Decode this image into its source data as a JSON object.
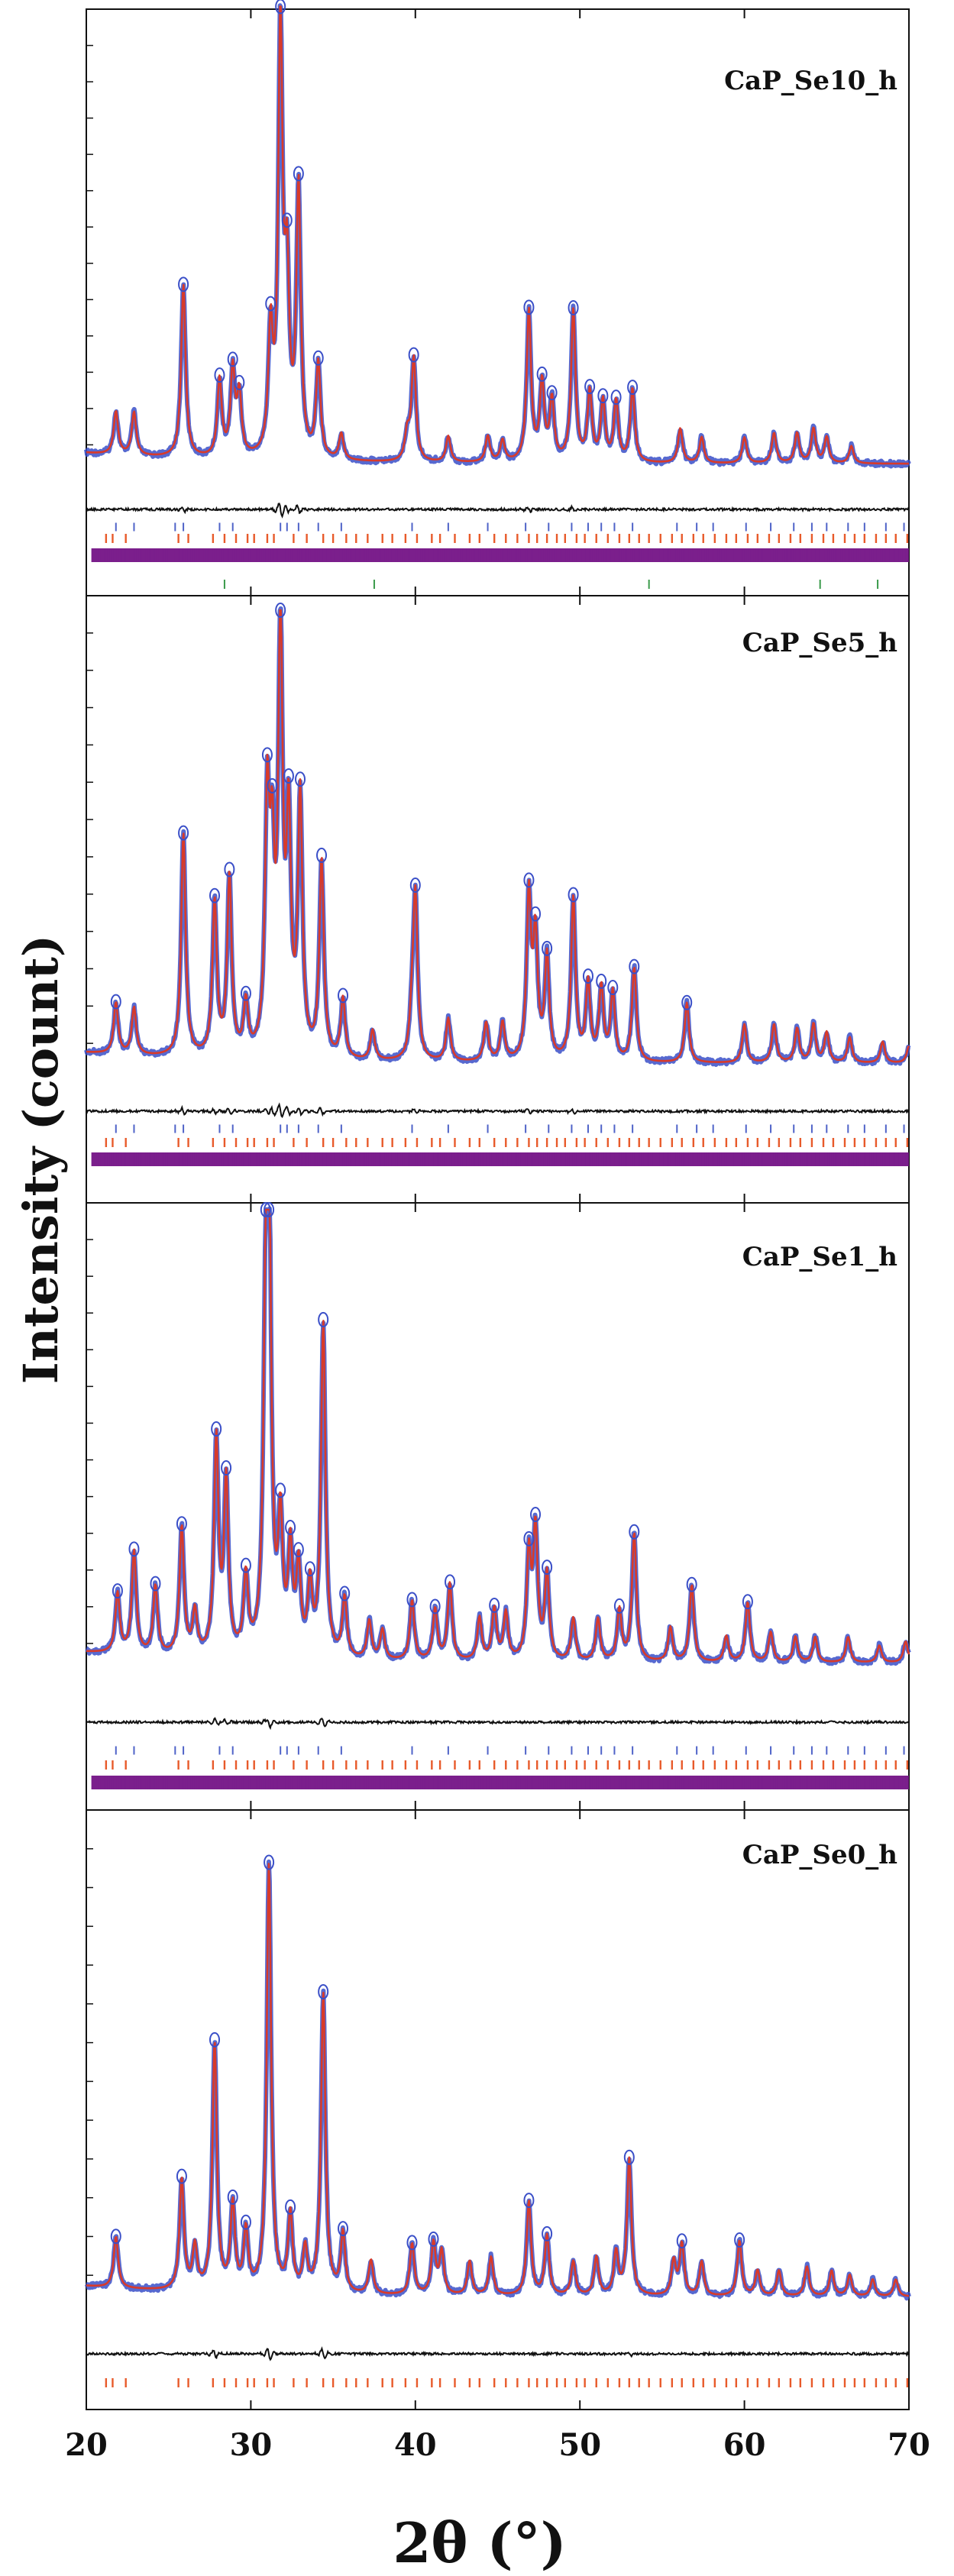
{
  "chart_data": {
    "type": "line",
    "figure_kind": "stacked Rietveld refinement XRD patterns",
    "xlabel": "2θ (°)",
    "ylabel": "Intensity (count)",
    "xlim": [
      20,
      70
    ],
    "xticks": [
      20,
      30,
      40,
      50,
      60,
      70
    ],
    "colors": {
      "observed": "#3a4fc8",
      "calculated": "#d83a2a",
      "difference": "#111111",
      "phase1_ticks": "#4f63c8",
      "phase2_ticks": "#e85a2a",
      "phase3_ticks": "#7b1f8c",
      "phase4_ticks": "#3a9a4a"
    },
    "panels": [
      {
        "label": "CaP_Se10_h",
        "peaks": [
          [
            21.8,
            10
          ],
          [
            22.9,
            10
          ],
          [
            25.9,
            40
          ],
          [
            28.1,
            18
          ],
          [
            28.9,
            20
          ],
          [
            29.3,
            14
          ],
          [
            31.2,
            28
          ],
          [
            31.8,
            100
          ],
          [
            32.2,
            38
          ],
          [
            32.9,
            62
          ],
          [
            34.1,
            22
          ],
          [
            35.5,
            6
          ],
          [
            39.5,
            6
          ],
          [
            39.9,
            24
          ],
          [
            42.0,
            6
          ],
          [
            44.4,
            6
          ],
          [
            45.3,
            5
          ],
          [
            46.9,
            35
          ],
          [
            47.7,
            18
          ],
          [
            48.3,
            14
          ],
          [
            49.6,
            35
          ],
          [
            50.6,
            16
          ],
          [
            51.4,
            14
          ],
          [
            52.2,
            14
          ],
          [
            53.2,
            17
          ],
          [
            56.1,
            8
          ],
          [
            57.4,
            6
          ],
          [
            60.0,
            6
          ],
          [
            61.8,
            7
          ],
          [
            63.2,
            7
          ],
          [
            64.2,
            8
          ],
          [
            65.0,
            6
          ],
          [
            66.5,
            4
          ]
        ],
        "tick_rows": [
          {
            "phase": 1,
            "positions": [
              21.8,
              22.9,
              25.4,
              25.9,
              28.1,
              28.9,
              31.8,
              32.2,
              32.9,
              34.1,
              35.5,
              39.8,
              42.0,
              44.4,
              46.7,
              48.1,
              49.5,
              50.5,
              51.3,
              52.1,
              53.2,
              55.9,
              57.1,
              58.1,
              60.1,
              61.6,
              63.0,
              64.1,
              65.0,
              66.3,
              67.3,
              68.6,
              69.7
            ]
          },
          {
            "phase": 2,
            "positions": [
              21.2,
              21.6,
              22.4,
              25.6,
              26.2,
              27.7,
              28.4,
              29.1,
              29.8,
              30.2,
              31.0,
              31.4,
              32.6,
              33.4,
              34.4,
              35.0,
              35.8,
              36.4,
              37.1,
              38.0,
              38.6,
              39.4,
              40.1,
              41.0,
              41.5,
              42.4,
              43.3,
              43.9,
              44.8,
              45.5,
              46.2,
              46.9,
              47.4,
              48.0,
              48.6,
              49.1,
              49.8,
              50.3,
              51.0,
              51.7,
              52.4,
              53.0,
              53.6,
              54.2,
              54.9,
              55.6,
              56.2,
              56.9,
              57.5,
              58.2,
              58.9,
              59.5,
              60.2,
              60.8,
              61.5,
              62.1,
              62.8,
              63.4,
              64.1,
              64.8,
              65.4,
              66.1,
              66.7,
              67.3,
              68.0,
              68.6,
              69.2,
              69.9
            ]
          },
          {
            "phase": 3,
            "dense": true,
            "from": 20.4,
            "to": 70.4,
            "step": 0.11
          },
          {
            "phase": 4,
            "positions": [
              28.4,
              37.5,
              54.2,
              64.6,
              68.1
            ]
          }
        ]
      },
      {
        "label": "CaP_Se5_h",
        "peaks": [
          [
            21.8,
            12
          ],
          [
            22.9,
            11
          ],
          [
            25.9,
            52
          ],
          [
            27.8,
            36
          ],
          [
            28.7,
            42
          ],
          [
            29.7,
            12
          ],
          [
            31.0,
            57
          ],
          [
            31.3,
            40
          ],
          [
            31.8,
            100
          ],
          [
            32.3,
            52
          ],
          [
            33.0,
            60
          ],
          [
            34.3,
            46
          ],
          [
            35.6,
            14
          ],
          [
            37.4,
            7
          ],
          [
            39.8,
            8
          ],
          [
            40.0,
            38
          ],
          [
            42.0,
            10
          ],
          [
            44.3,
            9
          ],
          [
            45.3,
            9
          ],
          [
            46.9,
            38
          ],
          [
            47.3,
            28
          ],
          [
            48.0,
            24
          ],
          [
            49.6,
            38
          ],
          [
            50.5,
            18
          ],
          [
            51.3,
            17
          ],
          [
            52.0,
            16
          ],
          [
            53.3,
            22
          ],
          [
            56.5,
            14
          ],
          [
            60.0,
            9
          ],
          [
            61.8,
            9
          ],
          [
            63.2,
            8
          ],
          [
            64.2,
            9
          ],
          [
            65.0,
            7
          ],
          [
            66.4,
            6
          ],
          [
            68.4,
            5
          ],
          [
            70.0,
            4
          ]
        ],
        "tick_rows": [
          {
            "phase": 1,
            "positions": [
              21.8,
              22.9,
              25.4,
              25.9,
              28.1,
              28.9,
              31.8,
              32.2,
              32.9,
              34.1,
              35.5,
              39.8,
              42.0,
              44.4,
              46.7,
              48.1,
              49.5,
              50.5,
              51.3,
              52.1,
              53.2,
              55.9,
              57.1,
              58.1,
              60.1,
              61.6,
              63.0,
              64.1,
              65.0,
              66.3,
              67.3,
              68.6,
              69.7
            ]
          },
          {
            "phase": 2,
            "positions": [
              21.2,
              21.6,
              22.4,
              25.6,
              26.2,
              27.7,
              28.4,
              29.1,
              29.8,
              30.2,
              31.0,
              31.4,
              32.6,
              33.4,
              34.4,
              35.0,
              35.8,
              36.4,
              37.1,
              38.0,
              38.6,
              39.4,
              40.1,
              41.0,
              41.5,
              42.4,
              43.3,
              43.9,
              44.8,
              45.5,
              46.2,
              46.9,
              47.4,
              48.0,
              48.6,
              49.1,
              49.8,
              50.3,
              51.0,
              51.7,
              52.4,
              53.0,
              53.6,
              54.2,
              54.9,
              55.6,
              56.2,
              56.9,
              57.5,
              58.2,
              58.9,
              59.5,
              60.2,
              60.8,
              61.5,
              62.1,
              62.8,
              63.4,
              64.1,
              64.8,
              65.4,
              66.1,
              66.7,
              67.3,
              68.0,
              68.6,
              69.2,
              69.9
            ]
          },
          {
            "phase": 3,
            "dense": true,
            "from": 20.4,
            "to": 70.4,
            "step": 0.11
          }
        ]
      },
      {
        "label": "CaP_Se1_h",
        "peaks": [
          [
            21.9,
            14
          ],
          [
            22.9,
            24
          ],
          [
            24.2,
            16
          ],
          [
            25.8,
            30
          ],
          [
            26.6,
            10
          ],
          [
            27.9,
            50
          ],
          [
            28.5,
            40
          ],
          [
            29.7,
            18
          ],
          [
            30.9,
            66
          ],
          [
            31.1,
            100
          ],
          [
            31.8,
            30
          ],
          [
            32.4,
            24
          ],
          [
            32.9,
            20
          ],
          [
            33.6,
            16
          ],
          [
            34.4,
            78
          ],
          [
            35.7,
            14
          ],
          [
            37.2,
            9
          ],
          [
            38.0,
            7
          ],
          [
            39.8,
            14
          ],
          [
            41.2,
            12
          ],
          [
            42.1,
            18
          ],
          [
            43.9,
            10
          ],
          [
            44.8,
            12
          ],
          [
            45.5,
            11
          ],
          [
            46.9,
            24
          ],
          [
            47.3,
            30
          ],
          [
            48.0,
            20
          ],
          [
            49.6,
            10
          ],
          [
            51.1,
            10
          ],
          [
            52.4,
            12
          ],
          [
            53.3,
            30
          ],
          [
            55.5,
            8
          ],
          [
            56.8,
            18
          ],
          [
            58.9,
            6
          ],
          [
            60.2,
            14
          ],
          [
            61.6,
            7
          ],
          [
            63.1,
            6
          ],
          [
            64.3,
            6
          ],
          [
            66.3,
            6
          ],
          [
            68.2,
            4
          ],
          [
            69.8,
            5
          ]
        ],
        "tick_rows": [
          {
            "phase": 1,
            "positions": [
              21.8,
              22.9,
              25.4,
              25.9,
              28.1,
              28.9,
              31.8,
              32.2,
              32.9,
              34.1,
              35.5,
              39.8,
              42.0,
              44.4,
              46.7,
              48.1,
              49.5,
              50.5,
              51.3,
              52.1,
              53.2,
              55.9,
              57.1,
              58.1,
              60.1,
              61.6,
              63.0,
              64.1,
              65.0,
              66.3,
              67.3,
              68.6,
              69.7
            ]
          },
          {
            "phase": 2,
            "positions": [
              21.2,
              21.6,
              22.4,
              25.6,
              26.2,
              27.7,
              28.4,
              29.1,
              29.8,
              30.2,
              31.0,
              31.4,
              32.6,
              33.4,
              34.4,
              35.0,
              35.8,
              36.4,
              37.1,
              38.0,
              38.6,
              39.4,
              40.1,
              41.0,
              41.5,
              42.4,
              43.3,
              43.9,
              44.8,
              45.5,
              46.2,
              46.9,
              47.4,
              48.0,
              48.6,
              49.1,
              49.8,
              50.3,
              51.0,
              51.7,
              52.4,
              53.0,
              53.6,
              54.2,
              54.9,
              55.6,
              56.2,
              56.9,
              57.5,
              58.2,
              58.9,
              59.5,
              60.2,
              60.8,
              61.5,
              62.1,
              62.8,
              63.4,
              64.1,
              64.8,
              65.4,
              66.1,
              66.7,
              67.3,
              68.0,
              68.6,
              69.2,
              69.9
            ]
          },
          {
            "phase": 3,
            "dense": true,
            "from": 20.4,
            "to": 70.4,
            "step": 0.11
          }
        ]
      },
      {
        "label": "CaP_Se0_h",
        "peaks": [
          [
            21.8,
            12
          ],
          [
            25.8,
            26
          ],
          [
            26.6,
            10
          ],
          [
            27.8,
            58
          ],
          [
            28.9,
            20
          ],
          [
            29.7,
            14
          ],
          [
            31.1,
            100
          ],
          [
            32.4,
            18
          ],
          [
            33.3,
            10
          ],
          [
            34.4,
            70
          ],
          [
            35.6,
            14
          ],
          [
            37.3,
            8
          ],
          [
            39.8,
            12
          ],
          [
            41.1,
            12
          ],
          [
            41.6,
            10
          ],
          [
            43.3,
            8
          ],
          [
            44.6,
            9
          ],
          [
            46.9,
            22
          ],
          [
            48.0,
            14
          ],
          [
            49.6,
            8
          ],
          [
            51.0,
            9
          ],
          [
            52.2,
            10
          ],
          [
            53.0,
            32
          ],
          [
            55.7,
            8
          ],
          [
            56.2,
            12
          ],
          [
            57.4,
            8
          ],
          [
            59.7,
            13
          ],
          [
            60.8,
            6
          ],
          [
            62.1,
            6
          ],
          [
            63.8,
            7
          ],
          [
            65.3,
            6
          ],
          [
            66.4,
            5
          ],
          [
            67.8,
            4
          ],
          [
            69.2,
            4
          ]
        ],
        "tick_rows": [
          {
            "phase": 2,
            "positions": [
              21.2,
              21.6,
              22.4,
              25.6,
              26.2,
              27.7,
              28.4,
              29.1,
              29.8,
              30.2,
              31.0,
              31.4,
              32.6,
              33.4,
              34.4,
              35.0,
              35.8,
              36.4,
              37.1,
              38.0,
              38.6,
              39.4,
              40.1,
              41.0,
              41.5,
              42.4,
              43.3,
              43.9,
              44.8,
              45.5,
              46.2,
              46.9,
              47.4,
              48.0,
              48.6,
              49.1,
              49.8,
              50.3,
              51.0,
              51.7,
              52.4,
              53.0,
              53.6,
              54.2,
              54.9,
              55.6,
              56.2,
              56.9,
              57.5,
              58.2,
              58.9,
              59.5,
              60.2,
              60.8,
              61.5,
              62.1,
              62.8,
              63.4,
              64.1,
              64.8,
              65.4,
              66.1,
              66.7,
              67.3,
              68.0,
              68.6,
              69.2,
              69.9
            ]
          }
        ]
      }
    ]
  }
}
